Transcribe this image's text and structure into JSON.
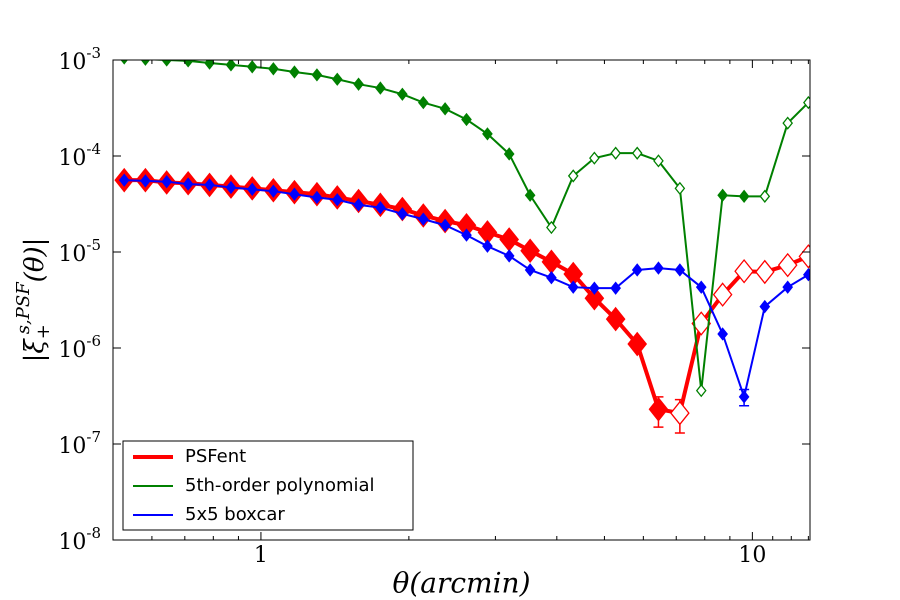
{
  "chart_data": {
    "type": "line",
    "xlabel": "θ(arcmin)",
    "ylabel": [
      "|ξ",
      "+",
      "s,PSF",
      "(θ)|"
    ],
    "x": [
      0.527,
      0.582,
      0.643,
      0.711,
      0.786,
      0.869,
      0.96,
      1.06,
      1.17,
      1.3,
      1.43,
      1.58,
      1.75,
      1.94,
      2.14,
      2.37,
      2.62,
      2.89,
      3.2,
      3.53,
      3.9,
      4.32,
      4.77,
      5.27,
      5.83,
      6.44,
      7.12,
      7.87,
      8.7,
      9.62,
      10.6,
      11.8,
      13.0
    ],
    "series": [
      {
        "name": "PSFent",
        "color": "#ff0000",
        "line_width": 4,
        "marker_size": 9,
        "values": [
          5.6e-05,
          5.6e-05,
          5.3e-05,
          5.2e-05,
          5e-05,
          4.8e-05,
          4.6e-05,
          4.4e-05,
          4.2e-05,
          4e-05,
          3.7e-05,
          3.4e-05,
          3.1e-05,
          2.8e-05,
          2.4e-05,
          2.1e-05,
          1.9e-05,
          1.6e-05,
          1.35e-05,
          1.03e-05,
          7.9e-06,
          5.9e-06,
          3.3e-06,
          2e-06,
          1.1e-06,
          2.3e-07,
          2.1e-07,
          1.8e-06,
          3.6e-06,
          6.3e-06,
          6.2e-06,
          7.3e-06,
          9e-06
        ],
        "errors": [
          null,
          null,
          null,
          null,
          null,
          null,
          null,
          null,
          null,
          null,
          null,
          null,
          null,
          null,
          null,
          null,
          null,
          null,
          null,
          null,
          null,
          null,
          null,
          null,
          null,
          8e-08,
          8e-08,
          null,
          null,
          null,
          null,
          null,
          null
        ],
        "hollow": [
          false,
          false,
          false,
          false,
          false,
          false,
          false,
          false,
          false,
          false,
          false,
          false,
          false,
          false,
          false,
          false,
          false,
          false,
          false,
          false,
          false,
          false,
          false,
          false,
          false,
          false,
          true,
          true,
          true,
          true,
          true,
          true,
          true
        ]
      },
      {
        "name": "5th-order polynomial",
        "color": "#008000",
        "line_width": 2,
        "marker_size": 4.5,
        "values": [
          0.00105,
          0.00102,
          0.001,
          0.00098,
          0.00093,
          0.00089,
          0.00085,
          0.00081,
          0.00075,
          0.0007,
          0.00063,
          0.00056,
          0.00051,
          0.00044,
          0.00036,
          0.00031,
          0.00024,
          0.00017,
          0.000105,
          3.9e-05,
          1.8e-05,
          6.2e-05,
          9.5e-05,
          0.000107,
          0.000107,
          8.9e-05,
          4.6e-05,
          3.6e-07,
          3.9e-05,
          3.8e-05,
          3.8e-05,
          0.00022,
          0.00036
        ],
        "errors": [
          null,
          null,
          null,
          null,
          null,
          null,
          null,
          null,
          null,
          null,
          null,
          null,
          null,
          null,
          null,
          null,
          null,
          null,
          null,
          null,
          null,
          null,
          null,
          null,
          null,
          null,
          null,
          null,
          null,
          null,
          null,
          null,
          null
        ],
        "hollow": [
          false,
          false,
          false,
          false,
          false,
          false,
          false,
          false,
          false,
          false,
          false,
          false,
          false,
          false,
          false,
          false,
          false,
          false,
          false,
          false,
          true,
          true,
          true,
          true,
          true,
          true,
          true,
          true,
          false,
          false,
          true,
          true,
          true
        ]
      },
      {
        "name": "5x5 boxcar",
        "color": "#0000ff",
        "line_width": 2,
        "marker_size": 4.5,
        "values": [
          5.6e-05,
          5.5e-05,
          5.4e-05,
          5.1e-05,
          5e-05,
          4.7e-05,
          4.5e-05,
          4.3e-05,
          4e-05,
          3.7e-05,
          3.5e-05,
          3.1e-05,
          2.9e-05,
          2.5e-05,
          2.2e-05,
          1.9e-05,
          1.5e-05,
          1.15e-05,
          9.1e-06,
          6.5e-06,
          5.4e-06,
          4.3e-06,
          4.2e-06,
          4.2e-06,
          6.5e-06,
          6.8e-06,
          6.5e-06,
          4.3e-06,
          1.4e-06,
          3.1e-07,
          2.7e-06,
          4.3e-06,
          5.8e-06
        ],
        "errors": [
          null,
          null,
          null,
          null,
          null,
          null,
          null,
          null,
          null,
          null,
          null,
          null,
          null,
          null,
          null,
          null,
          null,
          null,
          null,
          null,
          null,
          null,
          null,
          null,
          null,
          null,
          null,
          null,
          null,
          6e-08,
          null,
          null,
          null
        ],
        "hollow": [
          false,
          false,
          false,
          false,
          false,
          false,
          false,
          false,
          false,
          false,
          false,
          false,
          false,
          false,
          false,
          false,
          false,
          false,
          false,
          false,
          false,
          false,
          false,
          false,
          false,
          false,
          false,
          false,
          false,
          false,
          false,
          false,
          false
        ]
      }
    ],
    "xlim": [
      0.5,
      13.1
    ],
    "ylim": [
      1e-08,
      0.001
    ],
    "xscale": "log",
    "yscale": "log",
    "xticks": [
      1,
      10
    ],
    "xminorticks": [
      0.6,
      0.7,
      0.8,
      0.9,
      2,
      3,
      4,
      5,
      6,
      7,
      8,
      9,
      11,
      12,
      13
    ],
    "yticks": [
      {
        "value": 1e-08,
        "label": "10",
        "exponent": "-8"
      },
      {
        "value": 1e-07,
        "label": "10",
        "exponent": "-7"
      },
      {
        "value": 1e-06,
        "label": "10",
        "exponent": "-6"
      },
      {
        "value": 1e-05,
        "label": "10",
        "exponent": "-5"
      },
      {
        "value": 0.0001,
        "label": "10",
        "exponent": "-4"
      },
      {
        "value": 0.001,
        "label": "10",
        "exponent": "-3"
      }
    ],
    "legend": "lower left",
    "grid": false
  }
}
